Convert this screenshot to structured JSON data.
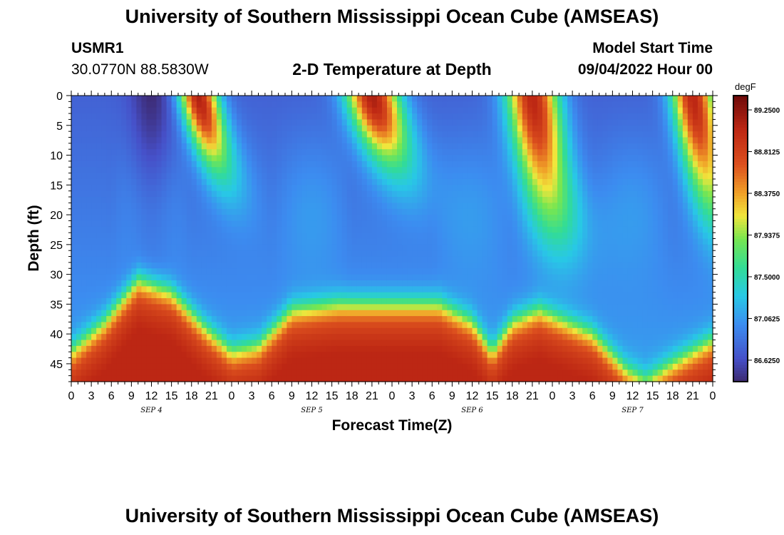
{
  "header": {
    "title": "University of Southern Mississippi Ocean Cube (AMSEAS)",
    "station_id": "USMR1",
    "coords": "30.0770N  88.5830W",
    "subtitle": "2-D Temperature at Depth",
    "start_label": "Model Start Time",
    "start_value": "09/04/2022 Hour 00"
  },
  "footer": {
    "title": "University of Southern Mississippi Ocean Cube (AMSEAS)"
  },
  "chart_data": {
    "type": "heatmap",
    "title": "2-D Temperature at Depth",
    "xlabel": "Forecast Time(Z)",
    "ylabel": "Depth (ft)",
    "x_range_hours": [
      0,
      96
    ],
    "y_range_ft": [
      0,
      48
    ],
    "x_tick_labels": [
      "0",
      "3",
      "6",
      "9",
      "12",
      "15",
      "18",
      "21",
      "0",
      "3",
      "6",
      "9",
      "12",
      "15",
      "18",
      "21",
      "0",
      "3",
      "6",
      "9",
      "12",
      "15",
      "18",
      "21",
      "0",
      "3",
      "6",
      "9",
      "12",
      "15",
      "18",
      "21",
      "0"
    ],
    "y_ticks": [
      0,
      5,
      10,
      15,
      20,
      25,
      30,
      35,
      40,
      45
    ],
    "day_labels": [
      {
        "label": "SEP 4",
        "hour": 12
      },
      {
        "label": "SEP 5",
        "hour": 36
      },
      {
        "label": "SEP 6",
        "hour": 60
      },
      {
        "label": "SEP 7",
        "hour": 84
      }
    ],
    "colorbar": {
      "unit": "degF",
      "min": 86.4,
      "max": 89.4,
      "tick_values": [
        86.625,
        87.0625,
        87.5,
        87.9375,
        88.375,
        88.8125,
        89.25
      ],
      "tick_labels": [
        "86.6250",
        "87.0625",
        "87.5000",
        "87.9375",
        "88.3750",
        "88.8125",
        "89.2500"
      ]
    },
    "surface_warm_events": [
      {
        "t_start": 16,
        "t_end": 24,
        "depth_max": 12,
        "peak_t": 19
      },
      {
        "t_start": 39,
        "t_end": 50,
        "depth_max": 11,
        "peak_t": 45
      },
      {
        "t_start": 63,
        "t_end": 74,
        "depth_max": 20,
        "peak_t": 69
      },
      {
        "t_start": 87,
        "t_end": 96,
        "depth_max": 18,
        "peak_t": 93
      }
    ],
    "surface_cold_event": {
      "t_center": 12,
      "depth_max": 28
    },
    "bottom_warm_layer_boundary": [
      {
        "t": 0,
        "depth": 43
      },
      {
        "t": 5,
        "depth": 38
      },
      {
        "t": 10,
        "depth": 31
      },
      {
        "t": 15,
        "depth": 33
      },
      {
        "t": 20,
        "depth": 39
      },
      {
        "t": 24,
        "depth": 43
      },
      {
        "t": 28,
        "depth": 42
      },
      {
        "t": 33,
        "depth": 36
      },
      {
        "t": 40,
        "depth": 35
      },
      {
        "t": 55,
        "depth": 35
      },
      {
        "t": 60,
        "depth": 38
      },
      {
        "t": 63,
        "depth": 43
      },
      {
        "t": 66,
        "depth": 38
      },
      {
        "t": 70,
        "depth": 36
      },
      {
        "t": 78,
        "depth": 40
      },
      {
        "t": 83,
        "depth": 46
      },
      {
        "t": 86,
        "depth": 48
      },
      {
        "t": 90,
        "depth": 45
      },
      {
        "t": 96,
        "depth": 41
      }
    ]
  }
}
